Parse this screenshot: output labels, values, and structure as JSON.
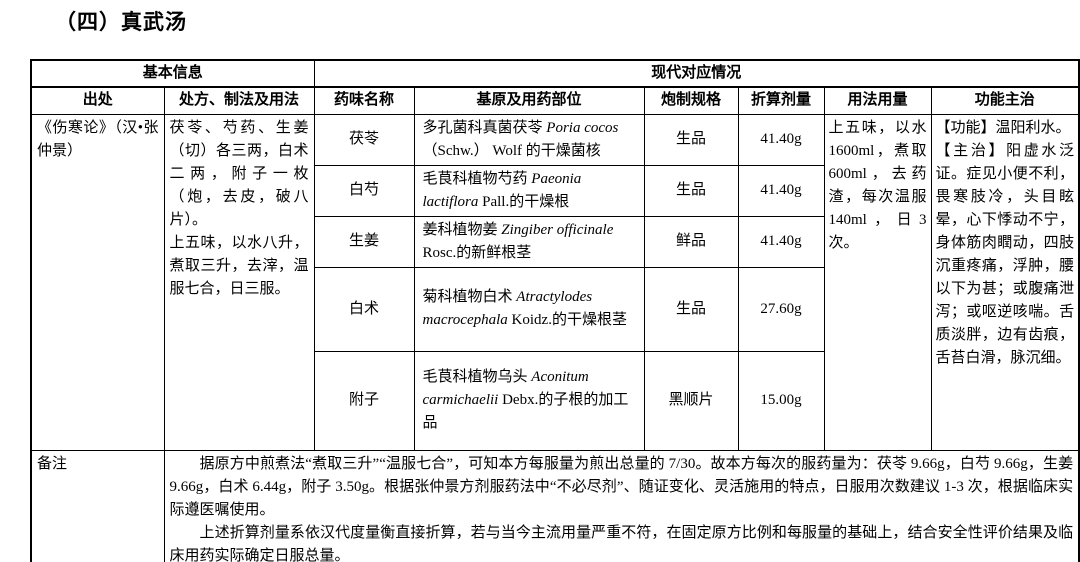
{
  "page": {
    "title": "（四）真武汤"
  },
  "table": {
    "header_groups": {
      "basic_info": "基本信息",
      "modern_info": "现代对应情况"
    },
    "columns": {
      "source": "出处",
      "prescription": "处方、制法及用法",
      "herb_name": "药味名称",
      "origin": "基原及用药部位",
      "processing": "炮制规格",
      "dose": "折算剂量",
      "usage": "用法用量",
      "function": "功能主治"
    },
    "source_text": "《伤寒论》（汉•张仲景）",
    "prescription_text": "茯苓、芍药、生姜（切）各三两，白术二两，附子一枚（炮，去皮，破八片）。\n上五味，以水八升，煮取三升，去滓，温服七合，日三服。",
    "usage_text": "上五味，以水1600ml，煮取600ml，去药渣，每次温服140ml，日3次。",
    "function_text": "【功能】温阳利水。\n【主治】阳虚水泛证。症见小便不利，畏寒肢冷，头目眩晕，心下悸动不宁，身体筋肉瞤动，四肢沉重疼痛，浮肿，腰以下为甚；或腹痛泄泻；或呕逆咳喘。舌质淡胖，边有齿痕，舌苔白滑，脉沉细。",
    "herbs": [
      {
        "name": "茯苓",
        "origin_segments": [
          {
            "t": "多孔菌科真菌茯苓 "
          },
          {
            "t": "Poria cocos",
            "i": true
          },
          {
            "t": "（Schw.） Wolf 的干燥菌核"
          }
        ],
        "processing": "生品",
        "dose": "41.40g"
      },
      {
        "name": "白芍",
        "origin_segments": [
          {
            "t": "毛茛科植物芍药 "
          },
          {
            "t": "Paeonia lactiflora",
            "i": true
          },
          {
            "t": " Pall.的干燥根"
          }
        ],
        "processing": "生品",
        "dose": "41.40g"
      },
      {
        "name": "生姜",
        "origin_segments": [
          {
            "t": "姜科植物姜 "
          },
          {
            "t": "Zingiber officinale",
            "i": true
          },
          {
            "t": " Rosc.的新鲜根茎"
          }
        ],
        "processing": "鲜品",
        "dose": "41.40g"
      },
      {
        "name": "白术",
        "origin_segments": [
          {
            "t": "菊科植物白术 "
          },
          {
            "t": "Atractylodes macrocephala",
            "i": true
          },
          {
            "t": " Koidz.的干燥根茎"
          }
        ],
        "processing": "生品",
        "dose": "27.60g"
      },
      {
        "name": "附子",
        "origin_segments": [
          {
            "t": "毛茛科植物乌头 "
          },
          {
            "t": "Aconitum carmichaelii",
            "i": true
          },
          {
            "t": " Debx.的子根的加工品"
          }
        ],
        "processing": "黑顺片",
        "dose": "15.00g"
      }
    ],
    "remark_label": "备注",
    "remark_paragraphs": [
      "据原方中煎煮法“煮取三升”“温服七合”，可知本方每服量为煎出总量的 7/30。故本方每次的服药量为：茯苓 9.66g，白芍 9.66g，生姜 9.66g，白术 6.44g，附子 3.50g。根据张仲景方剂服药法中“不必尽剂”、随证变化、灵活施用的特点，日服用次数建议 1-3 次，根据临床实际遵医嘱使用。",
      "上述折算剂量系依汉代度量衡直接折算，若与当今主流用量严重不符，在固定原方比例和每服量的基础上，结合安全性评价结果及临床用药实际确定日服总量。"
    ]
  },
  "colors": {
    "border": "#000000",
    "text": "#000000",
    "background": "#ffffff"
  }
}
